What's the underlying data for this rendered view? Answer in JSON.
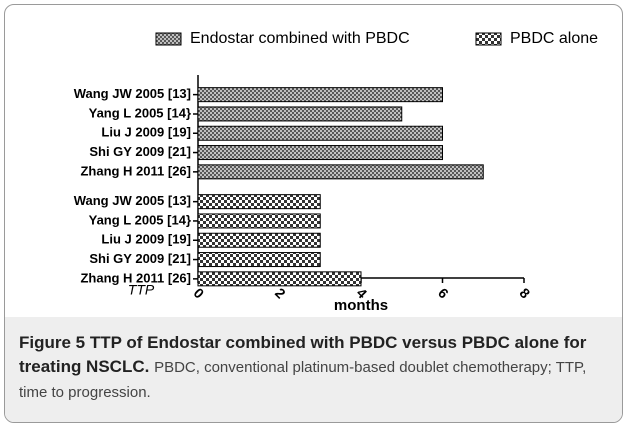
{
  "chart_data": {
    "type": "bar",
    "orientation": "horizontal",
    "categories": [
      "Wang JW 2005 [13]",
      "Yang L 2005 [14}",
      "Liu J 2009 [19]",
      "Shi GY 2009 [21]",
      "Zhang H 2011 [26]"
    ],
    "series": [
      {
        "name": "Endostar combined with PBDC",
        "color": "#555555",
        "values": [
          6,
          5,
          6,
          6,
          7
        ]
      },
      {
        "name": "PBDC alone",
        "color": "#333333",
        "values": [
          3,
          3,
          3,
          3,
          4
        ]
      }
    ],
    "xlim": [
      0,
      8
    ],
    "xticks": [
      0,
      2,
      4,
      6,
      8
    ],
    "xlabel": "months",
    "annotation": "TTP",
    "legend": "top-right"
  },
  "caption": {
    "label": "Figure 5",
    "title": "TTP of Endostar combined with PBDC versus PBDC alone for treating NSCLC.",
    "text": "PBDC, conventional platinum-based doublet chemotherapy; TTP, time to progression."
  }
}
